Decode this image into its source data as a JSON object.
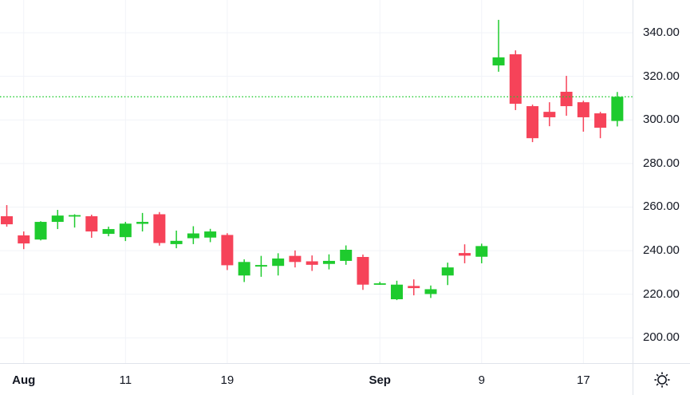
{
  "chart_data": {
    "type": "candlestick",
    "title": "",
    "timeframe_hint": "daily",
    "legend": "none",
    "grid": true,
    "colors": {
      "up": "#1ecb2e",
      "down": "#f64359",
      "grid": "#f1f3f8",
      "axis_border": "#e0e3eb",
      "text": "#131722",
      "background": "#ffffff",
      "price_line": "#1ecb2e"
    },
    "y_axis": {
      "side": "right",
      "ticks": [
        340,
        320,
        300,
        280,
        260,
        240,
        220,
        200
      ],
      "tick_labels": [
        "340.00",
        "320.00",
        "300.00",
        "280.00",
        "260.00",
        "240.00",
        "220.00",
        "200.00"
      ],
      "visible_range": [
        188.4,
        355.0
      ]
    },
    "x_axis": {
      "tick_labels": [
        "Aug",
        "11",
        "19",
        "Sep",
        "9",
        "17"
      ],
      "tick_candle_indexes": [
        1,
        7,
        13,
        22,
        28,
        34
      ],
      "month_labels": [
        "Aug",
        "Sep"
      ]
    },
    "price_line": {
      "value": 310.6,
      "style": "dotted"
    },
    "candles": [
      {
        "t": "Jul 31",
        "o": 255.8,
        "h": 260.9,
        "l": 251.0,
        "c": 252.1
      },
      {
        "t": "Aug 1",
        "o": 247.0,
        "h": 248.8,
        "l": 240.7,
        "c": 243.3
      },
      {
        "t": "Aug 4",
        "o": 245.1,
        "h": 253.5,
        "l": 244.7,
        "c": 253.2
      },
      {
        "t": "Aug 5",
        "o": 253.2,
        "h": 258.7,
        "l": 249.9,
        "c": 256.1
      },
      {
        "t": "Aug 6",
        "o": 255.8,
        "h": 256.7,
        "l": 250.6,
        "c": 256.3
      },
      {
        "t": "Aug 7",
        "o": 255.8,
        "h": 256.5,
        "l": 245.9,
        "c": 248.8
      },
      {
        "t": "Aug 8",
        "o": 247.7,
        "h": 251.0,
        "l": 246.6,
        "c": 249.9
      },
      {
        "t": "Aug 11",
        "o": 246.2,
        "h": 253.2,
        "l": 244.4,
        "c": 252.4
      },
      {
        "t": "Aug 12",
        "o": 252.3,
        "h": 257.3,
        "l": 248.8,
        "c": 253.2
      },
      {
        "t": "Aug 13",
        "o": 256.7,
        "h": 257.7,
        "l": 242.3,
        "c": 243.5
      },
      {
        "t": "Aug 14",
        "o": 243.0,
        "h": 249.2,
        "l": 241.1,
        "c": 244.5
      },
      {
        "t": "Aug 15",
        "o": 245.7,
        "h": 251.2,
        "l": 243.0,
        "c": 247.9
      },
      {
        "t": "Aug 18",
        "o": 246.0,
        "h": 250.0,
        "l": 243.9,
        "c": 248.8
      },
      {
        "t": "Aug 19",
        "o": 247.2,
        "h": 248.0,
        "l": 231.1,
        "c": 233.3
      },
      {
        "t": "Aug 20",
        "o": 228.6,
        "h": 236.0,
        "l": 225.6,
        "c": 234.8
      },
      {
        "t": "Aug 21",
        "o": 232.7,
        "h": 237.6,
        "l": 228.0,
        "c": 233.4
      },
      {
        "t": "Aug 22",
        "o": 233.0,
        "h": 238.8,
        "l": 228.6,
        "c": 236.4
      },
      {
        "t": "Aug 25",
        "o": 237.6,
        "h": 240.1,
        "l": 232.3,
        "c": 234.8
      },
      {
        "t": "Aug 26",
        "o": 235.1,
        "h": 237.8,
        "l": 230.7,
        "c": 233.5
      },
      {
        "t": "Aug 27",
        "o": 233.9,
        "h": 238.3,
        "l": 231.4,
        "c": 235.3
      },
      {
        "t": "Aug 28",
        "o": 235.3,
        "h": 242.4,
        "l": 233.5,
        "c": 240.4
      },
      {
        "t": "Aug 29",
        "o": 237.1,
        "h": 238.2,
        "l": 222.0,
        "c": 224.4
      },
      {
        "t": "Sep 1",
        "o": 225.0,
        "h": 225.7,
        "l": 224.3,
        "c": 225.0
      },
      {
        "t": "Sep 2",
        "o": 217.7,
        "h": 226.2,
        "l": 217.3,
        "c": 224.4
      },
      {
        "t": "Sep 3",
        "o": 223.8,
        "h": 226.8,
        "l": 219.5,
        "c": 222.8
      },
      {
        "t": "Sep 4",
        "o": 220.1,
        "h": 224.0,
        "l": 218.3,
        "c": 222.3
      },
      {
        "t": "Sep 5",
        "o": 228.6,
        "h": 234.5,
        "l": 224.2,
        "c": 232.3
      },
      {
        "t": "Sep 8",
        "o": 238.9,
        "h": 242.9,
        "l": 234.2,
        "c": 237.7
      },
      {
        "t": "Sep 9",
        "o": 237.2,
        "h": 243.2,
        "l": 234.2,
        "c": 242.1
      },
      {
        "t": "Sep 10",
        "o": 325.0,
        "h": 345.9,
        "l": 322.1,
        "c": 328.7
      },
      {
        "t": "Sep 11",
        "o": 330.1,
        "h": 331.9,
        "l": 304.5,
        "c": 307.4
      },
      {
        "t": "Sep 12",
        "o": 306.3,
        "h": 307.0,
        "l": 289.8,
        "c": 291.6
      },
      {
        "t": "Sep 15",
        "o": 303.7,
        "h": 308.1,
        "l": 297.1,
        "c": 301.2
      },
      {
        "t": "Sep 16",
        "o": 312.9,
        "h": 320.2,
        "l": 301.9,
        "c": 306.3
      },
      {
        "t": "Sep 17",
        "o": 308.1,
        "h": 308.8,
        "l": 294.6,
        "c": 301.2
      },
      {
        "t": "Sep 18",
        "o": 303.0,
        "h": 303.7,
        "l": 291.6,
        "c": 296.4
      },
      {
        "t": "Sep 19",
        "o": 299.5,
        "h": 312.8,
        "l": 297.0,
        "c": 310.6
      }
    ]
  },
  "corner": {
    "theme_icon": "sun"
  }
}
